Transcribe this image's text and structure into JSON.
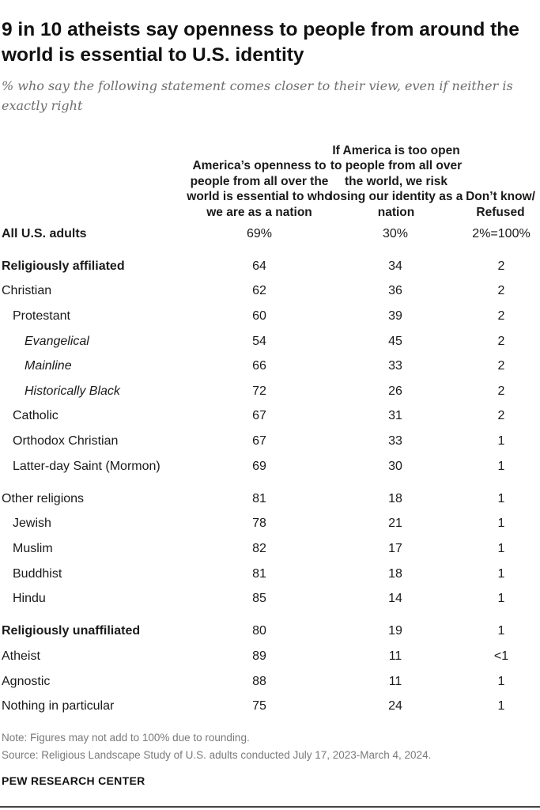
{
  "header": {
    "title": "9 in 10 atheists say openness to people from around the world is essential to U.S. identity",
    "subtitle": "% who say the following statement comes closer to their view, even if neither is exactly right"
  },
  "chart_data": {
    "type": "table",
    "columns": [
      "America’s openness to people from all over the world is essential to who we are as a nation",
      "If America is too open to people from all over the world, we risk losing our identity as a nation",
      "Don’t know/ Refused"
    ],
    "rows": [
      {
        "label": "All U.S. adults",
        "level": 0,
        "bold": true,
        "values": [
          "69%",
          "30%",
          "2%=100%"
        ]
      },
      {
        "label": "Religiously affiliated",
        "level": 0,
        "bold": true,
        "values": [
          "64",
          "34",
          "2"
        ]
      },
      {
        "label": "Christian",
        "level": 0,
        "bold": false,
        "values": [
          "62",
          "36",
          "2"
        ]
      },
      {
        "label": "Protestant",
        "level": 1,
        "bold": false,
        "values": [
          "60",
          "39",
          "2"
        ]
      },
      {
        "label": "Evangelical",
        "level": 2,
        "bold": false,
        "values": [
          "54",
          "45",
          "2"
        ]
      },
      {
        "label": "Mainline",
        "level": 2,
        "bold": false,
        "values": [
          "66",
          "33",
          "2"
        ]
      },
      {
        "label": "Historically Black",
        "level": 2,
        "bold": false,
        "values": [
          "72",
          "26",
          "2"
        ]
      },
      {
        "label": "Catholic",
        "level": 1,
        "bold": false,
        "values": [
          "67",
          "31",
          "2"
        ]
      },
      {
        "label": "Orthodox Christian",
        "level": 1,
        "bold": false,
        "values": [
          "67",
          "33",
          "1"
        ]
      },
      {
        "label": "Latter-day Saint (Mormon)",
        "level": 1,
        "bold": false,
        "values": [
          "69",
          "30",
          "1"
        ]
      },
      {
        "label": "Other religions",
        "level": 0,
        "bold": false,
        "values": [
          "81",
          "18",
          "1"
        ]
      },
      {
        "label": "Jewish",
        "level": 1,
        "bold": false,
        "values": [
          "78",
          "21",
          "1"
        ]
      },
      {
        "label": "Muslim",
        "level": 1,
        "bold": false,
        "values": [
          "82",
          "17",
          "1"
        ]
      },
      {
        "label": "Buddhist",
        "level": 1,
        "bold": false,
        "values": [
          "81",
          "18",
          "1"
        ]
      },
      {
        "label": "Hindu",
        "level": 1,
        "bold": false,
        "values": [
          "85",
          "14",
          "1"
        ]
      },
      {
        "label": "Religiously unaffiliated",
        "level": 0,
        "bold": true,
        "values": [
          "80",
          "19",
          "1"
        ]
      },
      {
        "label": "Atheist",
        "level": 0,
        "bold": false,
        "values": [
          "89",
          "11",
          "<1"
        ]
      },
      {
        "label": "Agnostic",
        "level": 0,
        "bold": false,
        "values": [
          "88",
          "11",
          "1"
        ]
      },
      {
        "label": "Nothing in particular",
        "level": 0,
        "bold": false,
        "values": [
          "75",
          "24",
          "1"
        ]
      }
    ]
  },
  "footer": {
    "note": "Note: Figures may not add to 100% due to rounding.",
    "source": "Source: Religious Landscape Study of U.S. adults conducted July 17, 2023-March 4, 2024.",
    "brand": "PEW RESEARCH CENTER"
  }
}
